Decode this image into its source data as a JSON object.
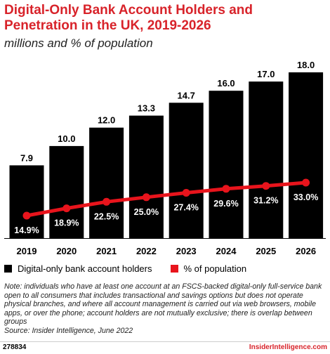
{
  "header": {
    "title": "Digital-Only Bank Account Holders and Penetration in the UK, 2019-2026",
    "subtitle": "millions and % of population"
  },
  "colors": {
    "bar": "#000000",
    "line": "#e8141c",
    "title": "#d8232a"
  },
  "chart_data": {
    "type": "bar",
    "categories": [
      "2019",
      "2020",
      "2021",
      "2022",
      "2023",
      "2024",
      "2025",
      "2026"
    ],
    "series": [
      {
        "name": "Digital-only bank account holders",
        "type": "bar",
        "values": [
          7.9,
          10.0,
          12.0,
          13.3,
          14.7,
          16.0,
          17.0,
          18.0
        ],
        "labels": [
          "7.9",
          "10.0",
          "12.0",
          "13.3",
          "14.7",
          "16.0",
          "17.0",
          "18.0"
        ]
      },
      {
        "name": "% of population",
        "type": "line",
        "values": [
          14.9,
          18.9,
          22.5,
          25.0,
          27.4,
          29.6,
          31.2,
          33.0
        ],
        "labels": [
          "14.9%",
          "18.9%",
          "22.5%",
          "25.0%",
          "27.4%",
          "29.6%",
          "31.2%",
          "33.0%"
        ]
      }
    ],
    "grid": false,
    "legend": "bottom-left"
  },
  "legend": {
    "items": [
      {
        "label": "Digital-only bank account holders",
        "color": "#000000"
      },
      {
        "label": "% of population",
        "color": "#e8141c"
      }
    ]
  },
  "note": {
    "text": "Note: individuals who have at least one account at an FSCS-backed digital-only full-service bank open to all consumers that includes transactional and savings options but does not operate physical branches, and where all account management is carried out via web browsers, mobile apps, or over the phone; account holders are not mutually exclusive; there is overlap between groups",
    "source": "Source: Insider Intelligence, June 2022"
  },
  "footer": {
    "id": "278834",
    "brand": "InsiderIntelligence.com"
  }
}
